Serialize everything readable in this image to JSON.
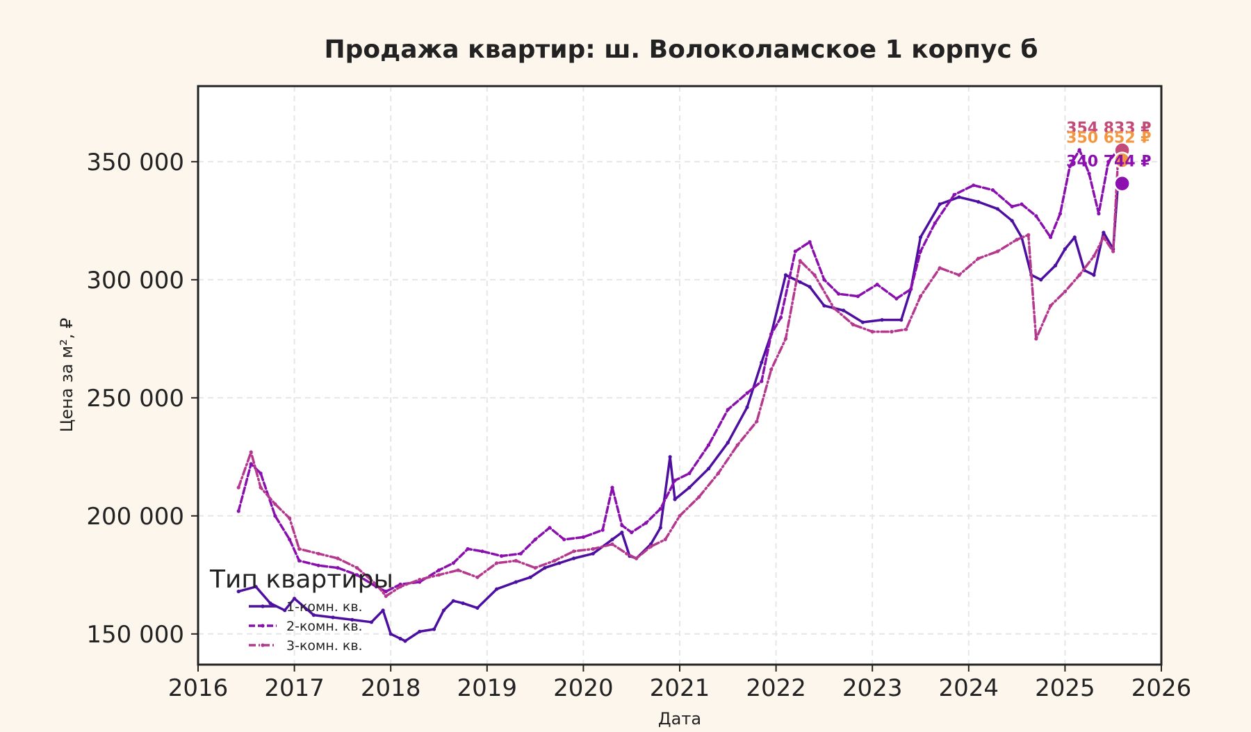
{
  "chart_data": {
    "type": "line",
    "title": "Продажа квартир: ш. Волоколамское 1 корпус б",
    "xlabel": "Дата",
    "ylabel": "Цена за м², ₽",
    "xlim": [
      2016.0,
      2026.0
    ],
    "ylim": [
      137000,
      382000
    ],
    "x_ticks": [
      2016,
      2017,
      2018,
      2019,
      2020,
      2021,
      2022,
      2023,
      2024,
      2025,
      2026
    ],
    "x_tick_labels": [
      "2016",
      "2017",
      "2018",
      "2019",
      "2020",
      "2021",
      "2022",
      "2023",
      "2024",
      "2025",
      "2026"
    ],
    "y_ticks": [
      150000,
      200000,
      250000,
      300000,
      350000
    ],
    "y_tick_labels": [
      "150 000",
      "200 000",
      "250 000",
      "300 000",
      "350 000"
    ],
    "grid": true,
    "legend": {
      "title": "Тип квартиры",
      "placement": "lower-left"
    },
    "series": [
      {
        "name": "1-комн. кв.",
        "color": "#4c0fa0",
        "dash": "solid",
        "x": [
          2016.42,
          2016.6,
          2016.75,
          2016.9,
          2017.0,
          2017.2,
          2017.4,
          2017.6,
          2017.8,
          2017.92,
          2018.0,
          2018.1,
          2018.15,
          2018.3,
          2018.45,
          2018.55,
          2018.65,
          2018.75,
          2018.9,
          2019.1,
          2019.3,
          2019.45,
          2019.6,
          2019.75,
          2019.9,
          2020.1,
          2020.3,
          2020.4,
          2020.48,
          2020.55,
          2020.7,
          2020.8,
          2020.9,
          2020.95,
          2021.1,
          2021.3,
          2021.5,
          2021.7,
          2021.85,
          2021.95,
          2022.1,
          2022.25,
          2022.35,
          2022.5,
          2022.7,
          2022.9,
          2023.1,
          2023.3,
          2023.4,
          2023.5,
          2023.7,
          2023.9,
          2024.1,
          2024.3,
          2024.45,
          2024.55,
          2024.65,
          2024.75,
          2024.9,
          2025.0,
          2025.1,
          2025.2,
          2025.3,
          2025.4,
          2025.5,
          2025.55
        ],
        "y": [
          168000,
          170000,
          163000,
          160000,
          165000,
          158000,
          157000,
          156000,
          155000,
          160000,
          150000,
          148000,
          147000,
          151000,
          152000,
          160000,
          164000,
          163000,
          161000,
          169000,
          172000,
          174000,
          178000,
          180000,
          182000,
          184000,
          190000,
          193000,
          183000,
          182000,
          188000,
          195000,
          225000,
          207000,
          212000,
          220000,
          231000,
          246000,
          265000,
          277000,
          302000,
          299000,
          297000,
          289000,
          287000,
          282000,
          283000,
          283000,
          296000,
          318000,
          332000,
          335000,
          333000,
          330000,
          325000,
          318000,
          302000,
          300000,
          306000,
          313000,
          318000,
          304000,
          302000,
          320000,
          313000,
          340744
        ]
      },
      {
        "name": "2-комн. кв.",
        "color": "#8a10ad",
        "dash": "dashed",
        "x": [
          2016.42,
          2016.55,
          2016.65,
          2016.8,
          2016.95,
          2017.05,
          2017.25,
          2017.45,
          2017.65,
          2017.85,
          2017.95,
          2018.1,
          2018.3,
          2018.5,
          2018.65,
          2018.8,
          2018.95,
          2019.15,
          2019.35,
          2019.5,
          2019.65,
          2019.8,
          2020.0,
          2020.2,
          2020.3,
          2020.4,
          2020.5,
          2020.65,
          2020.8,
          2020.95,
          2021.1,
          2021.3,
          2021.5,
          2021.7,
          2021.85,
          2021.95,
          2022.05,
          2022.2,
          2022.35,
          2022.5,
          2022.65,
          2022.85,
          2023.05,
          2023.25,
          2023.4,
          2023.5,
          2023.65,
          2023.85,
          2024.05,
          2024.25,
          2024.45,
          2024.55,
          2024.7,
          2024.85,
          2024.95,
          2025.05,
          2025.15,
          2025.25,
          2025.35,
          2025.45,
          2025.55
        ],
        "y": [
          202000,
          222000,
          218000,
          200000,
          190000,
          181000,
          179000,
          178000,
          175000,
          170000,
          168000,
          171000,
          172000,
          177000,
          180000,
          186000,
          185000,
          183000,
          184000,
          190000,
          195000,
          190000,
          191000,
          194000,
          212000,
          196000,
          193000,
          197000,
          203000,
          215000,
          218000,
          230000,
          245000,
          252000,
          257000,
          277000,
          284000,
          312000,
          316000,
          300000,
          294000,
          293000,
          298000,
          292000,
          296000,
          312000,
          324000,
          336000,
          340000,
          338000,
          331000,
          332000,
          327000,
          318000,
          328000,
          348000,
          355000,
          345000,
          328000,
          350000,
          354833
        ]
      },
      {
        "name": "3-комн. кв.",
        "color": "#b5388f",
        "dash": "dashdot",
        "x": [
          2016.42,
          2016.55,
          2016.65,
          2016.8,
          2016.95,
          2017.05,
          2017.25,
          2017.45,
          2017.65,
          2017.85,
          2017.95,
          2018.1,
          2018.3,
          2018.5,
          2018.7,
          2018.9,
          2019.1,
          2019.3,
          2019.5,
          2019.7,
          2019.9,
          2020.1,
          2020.3,
          2020.45,
          2020.55,
          2020.7,
          2020.85,
          2021.0,
          2021.2,
          2021.4,
          2021.6,
          2021.8,
          2021.95,
          2022.1,
          2022.25,
          2022.4,
          2022.6,
          2022.8,
          2023.0,
          2023.2,
          2023.35,
          2023.5,
          2023.7,
          2023.9,
          2024.1,
          2024.3,
          2024.5,
          2024.62,
          2024.7,
          2024.85,
          2025.0,
          2025.15,
          2025.3,
          2025.4,
          2025.5,
          2025.55
        ],
        "y": [
          212000,
          227000,
          212000,
          205000,
          199000,
          186000,
          184000,
          182000,
          178000,
          171000,
          166000,
          170000,
          173000,
          175000,
          177000,
          174000,
          180000,
          181000,
          178000,
          181000,
          185000,
          186000,
          188000,
          184000,
          182000,
          187000,
          190000,
          200000,
          208000,
          218000,
          230000,
          240000,
          262000,
          275000,
          308000,
          302000,
          288000,
          281000,
          278000,
          278000,
          279000,
          293000,
          305000,
          302000,
          309000,
          312000,
          317000,
          319000,
          275000,
          289000,
          295000,
          302000,
          310000,
          318000,
          312000,
          350652
        ]
      }
    ],
    "annotations": [
      {
        "text": "354 833 ₽",
        "x": 2025.55,
        "y": 354833,
        "color": "#c34a78"
      },
      {
        "text": "350 652 ₽",
        "x": 2025.55,
        "y": 350652,
        "color": "#f2963f"
      },
      {
        "text": "340 744 ₽",
        "x": 2025.55,
        "y": 340744,
        "color": "#8c10b0"
      }
    ],
    "end_markers": [
      {
        "x": 2025.55,
        "y": 354833,
        "color": "#c34a78"
      },
      {
        "x": 2025.55,
        "y": 350652,
        "color": "#f2963f"
      },
      {
        "x": 2025.55,
        "y": 340744,
        "color": "#8c10b0"
      }
    ]
  }
}
